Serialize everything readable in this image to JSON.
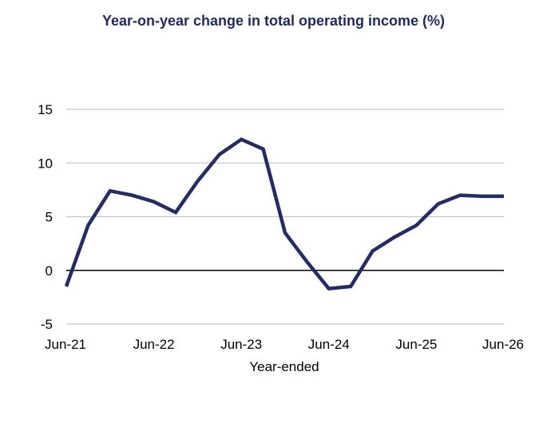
{
  "colors": {
    "title": "#1f2a5c",
    "line": "#232d63",
    "grid": "#c8c8c8",
    "zero_line": "#000000"
  },
  "chart_data": {
    "type": "line",
    "title": "Year-on-year change in total operating income (%)",
    "xlabel": "Year-ended",
    "ylabel": "",
    "ylim": [
      -5,
      15
    ],
    "yticks": [
      15,
      10,
      5,
      0,
      -5
    ],
    "xticks": [
      "Jun-21",
      "Jun-22",
      "Jun-23",
      "Jun-24",
      "Jun-25",
      "Jun-26"
    ],
    "grid": true,
    "legend": "none",
    "series": [
      {
        "x": [
          "Jun-21",
          "Sep-21",
          "Dec-21",
          "Mar-22",
          "Jun-22",
          "Sep-22",
          "Dec-22",
          "Mar-23",
          "Jun-23",
          "Sep-23",
          "Dec-23",
          "Mar-24",
          "Jun-24",
          "Sep-24",
          "Dec-24",
          "Mar-25",
          "Jun-25",
          "Sep-25",
          "Dec-25",
          "Mar-26",
          "Jun-26"
        ],
        "values": [
          -1.5,
          4.2,
          7.4,
          7.0,
          6.4,
          5.4,
          8.3,
          10.8,
          12.2,
          11.3,
          3.5,
          0.8,
          -1.7,
          -1.5,
          1.8,
          3.1,
          4.2,
          6.2,
          7.0,
          6.9,
          6.9
        ]
      }
    ]
  }
}
